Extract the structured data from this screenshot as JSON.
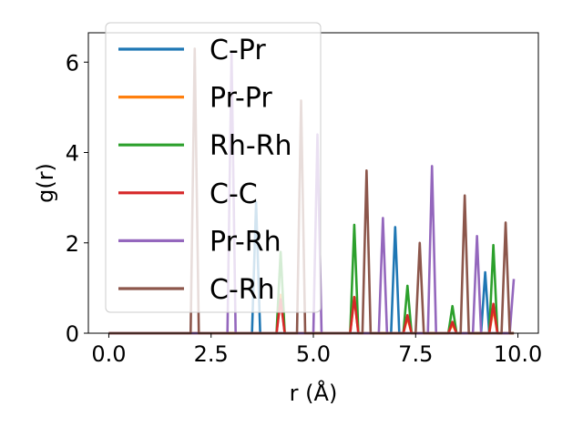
{
  "chart_data": {
    "type": "line",
    "title": "",
    "xlabel": "r (Å)",
    "ylabel": "g(r)",
    "xlim": [
      -0.5,
      10.5
    ],
    "ylim": [
      0,
      6.65
    ],
    "xticks": [
      0.0,
      2.5,
      5.0,
      7.5,
      10.0
    ],
    "xtick_labels": [
      "0.0",
      "2.5",
      "5.0",
      "7.5",
      "10.0"
    ],
    "yticks": [
      0,
      2,
      4,
      6
    ],
    "ytick_labels": [
      "0",
      "2",
      "4",
      "6"
    ],
    "grid": false,
    "legend_position": "upper-left",
    "series": [
      {
        "name": "C-Pr",
        "color": "#1f77b4",
        "peaks": [
          [
            3.6,
            2.9
          ],
          [
            6.95,
            2.35
          ],
          [
            9.2,
            1.35
          ]
        ]
      },
      {
        "name": "Pr-Pr",
        "color": "#ff7f0e",
        "peaks": [
          [
            4.2,
            0.85
          ],
          [
            6.0,
            0.8
          ],
          [
            7.3,
            0.35
          ],
          [
            8.4,
            0.2
          ],
          [
            9.4,
            0.55
          ]
        ]
      },
      {
        "name": "Rh-Rh",
        "color": "#2ca02c",
        "peaks": [
          [
            4.2,
            1.8
          ],
          [
            6.0,
            2.4
          ],
          [
            7.3,
            1.05
          ],
          [
            8.4,
            0.6
          ],
          [
            9.4,
            1.95
          ]
        ]
      },
      {
        "name": "C-C",
        "color": "#d62728",
        "peaks": [
          [
            4.2,
            0.75
          ],
          [
            6.0,
            0.8
          ],
          [
            7.3,
            0.4
          ],
          [
            8.4,
            0.25
          ],
          [
            9.4,
            0.65
          ]
        ]
      },
      {
        "name": "Pr-Rh",
        "color": "#9467bd",
        "peaks": [
          [
            3.0,
            6.2
          ],
          [
            5.1,
            4.4
          ],
          [
            6.7,
            2.55
          ],
          [
            7.9,
            3.7
          ],
          [
            9.0,
            2.15
          ],
          [
            9.9,
            1.2
          ]
        ]
      },
      {
        "name": "C-Rh",
        "color": "#8c564b",
        "peaks": [
          [
            2.1,
            6.3
          ],
          [
            4.7,
            5.15
          ],
          [
            6.3,
            3.6
          ],
          [
            7.6,
            2.0
          ],
          [
            8.7,
            3.05
          ],
          [
            9.7,
            2.45
          ]
        ]
      }
    ]
  }
}
